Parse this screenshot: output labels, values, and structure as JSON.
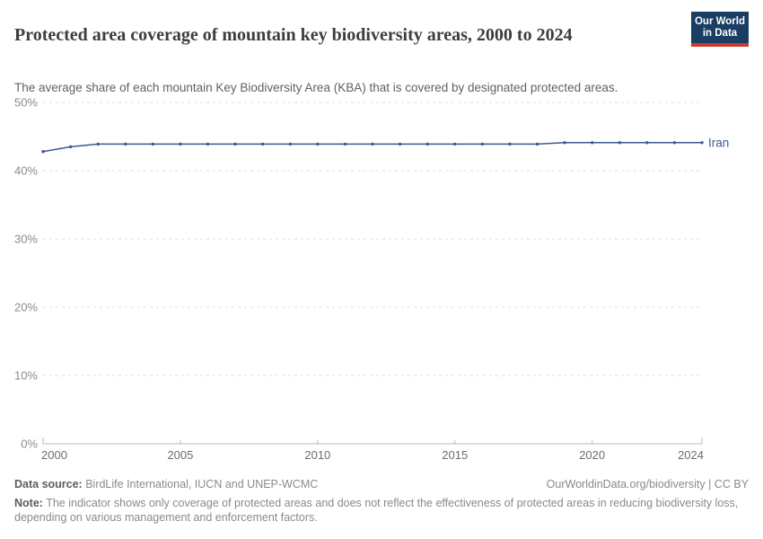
{
  "header": {
    "title": "Protected area coverage of mountain key biodiversity areas, 2000 to 2024",
    "subtitle": "The average share of each mountain Key Biodiversity Area (KBA) that is covered by designated protected areas.",
    "logo": {
      "line1": "Our World",
      "line2": "in Data"
    }
  },
  "chart_data": {
    "type": "line",
    "title": "Protected area coverage of mountain key biodiversity areas, 2000 to 2024",
    "xlabel": "",
    "ylabel": "",
    "xlim": [
      2000,
      2024
    ],
    "ylim": [
      0,
      50
    ],
    "x_ticks": [
      2000,
      2005,
      2010,
      2015,
      2020,
      2024
    ],
    "y_ticks": [
      0,
      10,
      20,
      30,
      40,
      50
    ],
    "y_tick_suffix": "%",
    "grid": "horizontal-dashed",
    "legend_position": "end-of-line",
    "series": [
      {
        "name": "Iran",
        "color": "#3b5a90",
        "years": [
          2000,
          2001,
          2002,
          2003,
          2004,
          2005,
          2006,
          2007,
          2008,
          2009,
          2010,
          2011,
          2012,
          2013,
          2014,
          2015,
          2016,
          2017,
          2018,
          2019,
          2020,
          2021,
          2022,
          2023,
          2024
        ],
        "values": [
          42.8,
          43.5,
          43.9,
          43.9,
          43.9,
          43.9,
          43.9,
          43.9,
          43.9,
          43.9,
          43.9,
          43.9,
          43.9,
          43.9,
          43.9,
          43.9,
          43.9,
          43.9,
          43.9,
          44.1,
          44.1,
          44.1,
          44.1,
          44.1,
          44.1
        ]
      }
    ],
    "colors": {
      "grid": "#dcdcdc",
      "axis": "#bbbbbb",
      "y_tick_label": "#8b8b8b",
      "x_tick_label": "#6d6d6d"
    }
  },
  "footer": {
    "datasource_label": "Data source:",
    "datasource": " BirdLife International, IUCN and UNEP-WCMC",
    "attribution": "OurWorldinData.org/biodiversity | CC BY",
    "note_label": "Note:",
    "note": " The indicator shows only coverage of protected areas and does not reflect the effectiveness of protected areas in reducing biodiversity loss, depending on various management and enforcement factors."
  }
}
